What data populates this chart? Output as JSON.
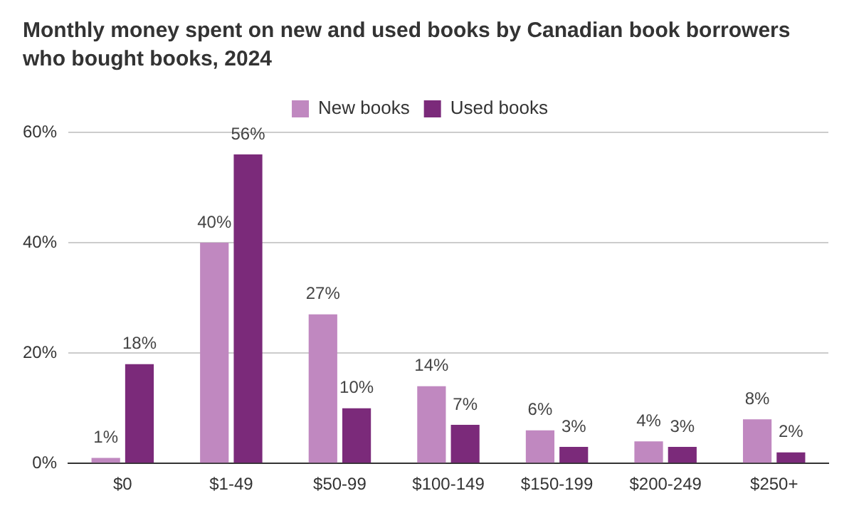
{
  "chart_data": {
    "type": "bar",
    "title": "Monthly money spent on new and used books by Canadian book borrowers who bought books, 2024",
    "categories": [
      "$0",
      "$1-49",
      "$50-99",
      "$100-149",
      "$150-199",
      "$200-249",
      "$250+"
    ],
    "series": [
      {
        "name": "New books",
        "color": "#c088c0",
        "values": [
          1,
          40,
          27,
          14,
          6,
          4,
          8
        ],
        "value_labels": [
          "1%",
          "40%",
          "27%",
          "14%",
          "6%",
          "4%",
          "8%"
        ]
      },
      {
        "name": "Used books",
        "color": "#7b2a7a",
        "values": [
          18,
          56,
          10,
          7,
          3,
          3,
          2
        ],
        "value_labels": [
          "18%",
          "56%",
          "10%",
          "7%",
          "3%",
          "3%",
          "2%"
        ]
      }
    ],
    "ylim": [
      0,
      60
    ],
    "yticks": [
      {
        "value": 0,
        "label": "0%"
      },
      {
        "value": 20,
        "label": "20%"
      },
      {
        "value": 40,
        "label": "40%"
      },
      {
        "value": 60,
        "label": "60%"
      }
    ],
    "grid": "y",
    "legend": "top"
  }
}
